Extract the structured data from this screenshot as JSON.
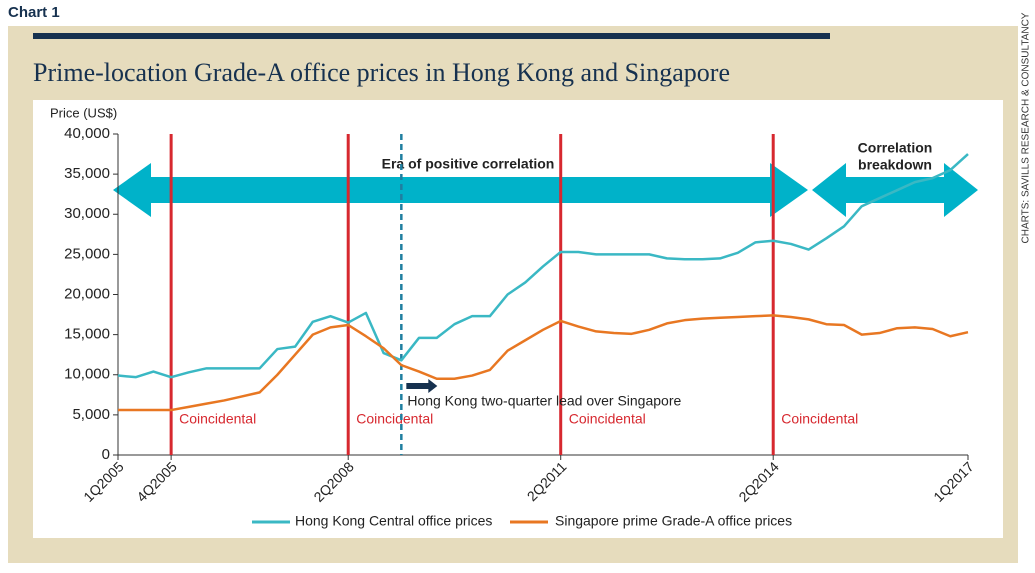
{
  "chart_data": {
    "type": "line",
    "label": "Chart 1",
    "title": "Prime-location Grade-A office prices in Hong Kong and Singapore",
    "source": "CHARTS: SAVILLS RESEARCH & CONSULTANCY",
    "y_label": "Price (US$)",
    "categories": [
      "1Q2005",
      null,
      null,
      "4Q2005",
      null,
      null,
      null,
      null,
      null,
      null,
      null,
      null,
      null,
      "2Q2008",
      null,
      null,
      null,
      null,
      null,
      null,
      null,
      null,
      null,
      null,
      null,
      "2Q2011",
      null,
      null,
      null,
      null,
      null,
      null,
      null,
      null,
      null,
      null,
      null,
      "2Q2014",
      null,
      null,
      null,
      null,
      null,
      null,
      null,
      null,
      null,
      null,
      "1Q2017"
    ],
    "series": [
      {
        "name": "Hong Kong Central office prices",
        "color": "#3ab8c4",
        "values": [
          9900,
          9700,
          10400,
          9700,
          10300,
          10800,
          10800,
          10800,
          10800,
          13200,
          13500,
          16600,
          17300,
          16500,
          17700,
          12700,
          11800,
          14600,
          14600,
          16300,
          17300,
          17300,
          20000,
          21500,
          23500,
          25300,
          25300,
          25000,
          25000,
          25000,
          25000,
          24500,
          24400,
          24400,
          24500,
          25200,
          26500,
          26700,
          26300,
          25600,
          27000,
          28500,
          31000,
          32000,
          33000,
          34000,
          34500,
          35500,
          37500
        ]
      },
      {
        "name": "Singapore prime Grade-A office prices",
        "color": "#e87722",
        "values": [
          5600,
          5600,
          5600,
          5600,
          6000,
          6400,
          6800,
          7300,
          7800,
          10000,
          12500,
          15000,
          15900,
          16200,
          14800,
          13300,
          11200,
          10400,
          9500,
          9500,
          9900,
          10600,
          13000,
          14300,
          15600,
          16700,
          16000,
          15400,
          15200,
          15100,
          15600,
          16400,
          16800,
          17000,
          17100,
          17200,
          17300,
          17400,
          17200,
          16900,
          16300,
          16200,
          15000,
          15200,
          15800,
          15900,
          15700,
          14800,
          15300
        ]
      }
    ],
    "ylim": [
      0,
      40000
    ],
    "yticks": [
      0,
      {
        "value": 5000,
        "label": "5,000"
      },
      {
        "value": 10000,
        "label": "10,000"
      },
      {
        "value": 15000,
        "label": "15,000"
      },
      {
        "value": 20000,
        "label": "20,000"
      },
      {
        "value": 25000,
        "label": "25,000"
      },
      {
        "value": 30000,
        "label": "30,000"
      },
      {
        "value": 35000,
        "label": "35,000"
      },
      {
        "value": 40000,
        "label": "40,000"
      }
    ],
    "markers": [
      {
        "index": 3,
        "label": "Coincidental",
        "color": "#d7282f"
      },
      {
        "index": 13,
        "label": "Coincidental",
        "color": "#d7282f"
      },
      {
        "index": 25,
        "label": "Coincidental",
        "color": "#d7282f"
      },
      {
        "index": 37,
        "label": "Coincidental",
        "color": "#d7282f"
      }
    ],
    "lead_marker": {
      "index": 16,
      "label": "Hong Kong two-quarter lead over Singapore",
      "color": "#1f7fa0"
    },
    "annotations": [
      "Era of positive correlation",
      "Correlation",
      "breakdown"
    ]
  }
}
